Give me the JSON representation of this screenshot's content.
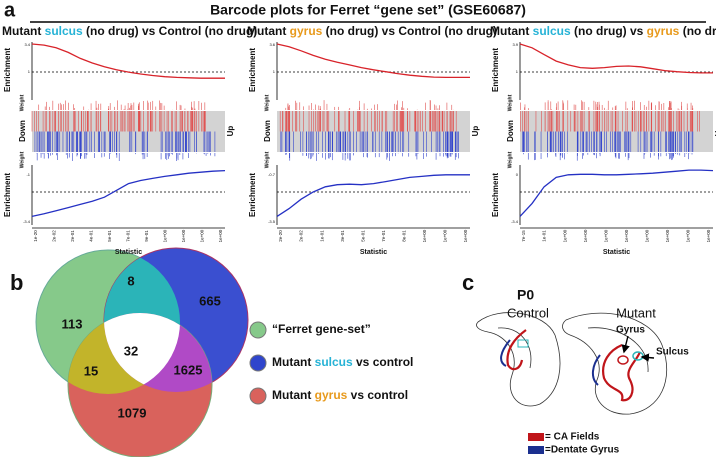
{
  "panel_a": {
    "label": "a",
    "title": "Barcode plots for Ferret “gene set” (GSE60687)",
    "plots": [
      {
        "title_parts": [
          "Mutant ",
          "sulcus",
          " (no drug) vs Control (no drug)"
        ],
        "accent": "#27b3d6",
        "y_top": "Enrichment",
        "weight_top": "Weight",
        "down": "Down",
        "up": "Up",
        "weight_bottom": "Weight",
        "y_bottom": "Enrichment",
        "x_label": "Statistic",
        "yticks_top": [
          "3.4",
          "1"
        ],
        "yticks_bottom": [
          "-1",
          "-3.4"
        ],
        "xticks": [
          "1e-20",
          "2e-02",
          "2e-01",
          "4e-01",
          "5e-01",
          "7e-01",
          "9e-01",
          "1e+00",
          "1e+00",
          "1e+00",
          "1e+00"
        ]
      },
      {
        "title_parts": [
          "Mutant ",
          "gyrus",
          " (no drug) vs Control (no drug)"
        ],
        "accent": "#e89a1c",
        "y_top": "Enrichment",
        "weight_top": "Weight",
        "down": "Down",
        "up": "Up",
        "weight_bottom": "Weight",
        "y_bottom": "Enrichment",
        "x_label": "Statistic",
        "yticks_top": [
          "3.6",
          "1"
        ],
        "yticks_bottom": [
          "-0.7",
          "-3.5"
        ],
        "xticks": [
          "2e-20",
          "2e-02",
          "1e-01",
          "3e-01",
          "5e-01",
          "7e-01",
          "8e-01",
          "1e+00",
          "1e+00",
          "1e+00"
        ]
      },
      {
        "title_parts": [
          "Mutant ",
          "sulcus",
          " (no drug) vs ",
          "gyrus",
          " (no drug)"
        ],
        "accent": "#27b3d6",
        "accent2": "#e89a1c",
        "y_top": "Enrichment",
        "weight_top": "Weight",
        "down": "Down",
        "up": "Up",
        "weight_bottom": "Weight",
        "y_bottom": "Enrichment",
        "x_label": "Statistic",
        "yticks_top": [
          "3.9",
          "1"
        ],
        "yticks_bottom": [
          "0",
          "-3.4"
        ],
        "xticks": [
          "7e-15",
          "1e-01",
          "1e+00",
          "1e+00",
          "1e+00",
          "1e+00",
          "1e+00",
          "1e+00",
          "1e+00",
          "1e+00"
        ]
      }
    ]
  },
  "panel_b": {
    "label": "b",
    "regions": {
      "ferret_only": "113",
      "ferret_sulcus": "8",
      "sulcus_only": "665",
      "all": "32",
      "ferret_gyrus": "15",
      "sulcus_gyrus": "1625",
      "gyrus_only": "1079"
    },
    "legend": [
      {
        "parts": [
          "“Ferret gene-set”"
        ],
        "color": "#86c98a"
      },
      {
        "parts": [
          "Mutant ",
          "sulcus",
          " vs control"
        ],
        "color": "#2f45cc",
        "accent": "#27b3d6"
      },
      {
        "parts": [
          "Mutant ",
          "gyrus",
          " vs control"
        ],
        "color": "#d9625c",
        "accent": "#e89a1c"
      }
    ]
  },
  "panel_c": {
    "label": "c",
    "stage": "P0",
    "control": "Control",
    "mutant": "Mutant",
    "gyrus": "Gyrus",
    "sulcus": "Sulcus",
    "legend": [
      {
        "text": "= CA Fields",
        "color": "#c0151a"
      },
      {
        "text": "=Dentate Gyrus",
        "color": "#1b2f8f"
      }
    ]
  }
}
